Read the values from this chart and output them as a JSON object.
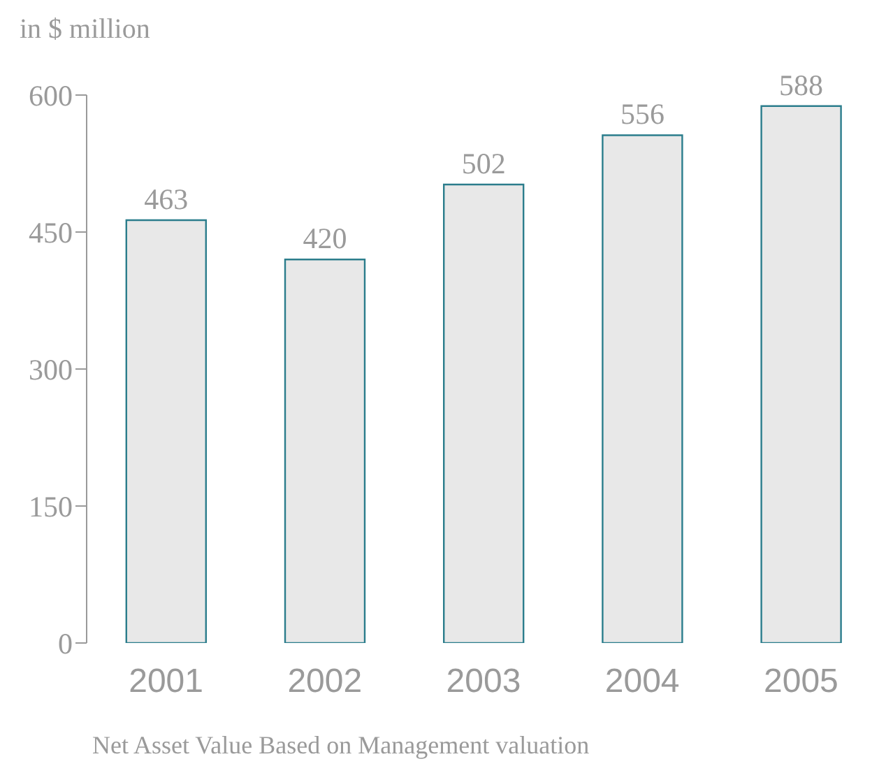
{
  "chart_data": {
    "type": "bar",
    "ylabel": "in $ million",
    "categories": [
      "2001",
      "2002",
      "2003",
      "2004",
      "2005"
    ],
    "values": [
      463,
      420,
      502,
      556,
      588
    ],
    "color": "#e8e8e8",
    "ylim": [
      0,
      600
    ],
    "yticks": [
      0,
      150,
      300,
      450,
      600
    ],
    "grid": false,
    "data_labels": true,
    "annotations": [
      "Net Asset Value Based on Management valuation"
    ]
  }
}
